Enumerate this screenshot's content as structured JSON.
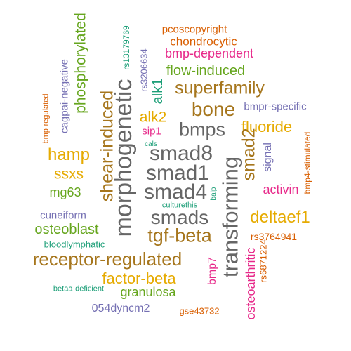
{
  "word_cloud": {
    "words": [
      {
        "text": "pcoscopyright",
        "color": "#d95f02"
      },
      {
        "text": "chondrocytic",
        "color": "#d95f02"
      },
      {
        "text": "bmp-dependent",
        "color": "#e7298a"
      },
      {
        "text": "rs13179769",
        "color": "#1b9e77"
      },
      {
        "text": "phosphorylated",
        "color": "#66a61e"
      },
      {
        "text": "cagpai-negative",
        "color": "#7570b3"
      },
      {
        "text": "rs3206634",
        "color": "#7570b3"
      },
      {
        "text": "flow-induced",
        "color": "#66a61e"
      },
      {
        "text": "alk1",
        "color": "#1b9e77"
      },
      {
        "text": "superfamily",
        "color": "#a6761d"
      },
      {
        "text": "bmp-regulated",
        "color": "#d95f02"
      },
      {
        "text": "morphogenetic",
        "color": "#666666"
      },
      {
        "text": "bone",
        "color": "#a6761d"
      },
      {
        "text": "bmpr-specific",
        "color": "#7570b3"
      },
      {
        "text": "alk2",
        "color": "#e6ab02"
      },
      {
        "text": "shear-induced",
        "color": "#a6761d"
      },
      {
        "text": "bmps",
        "color": "#666666"
      },
      {
        "text": "fluoride",
        "color": "#e6ab02"
      },
      {
        "text": "sip1",
        "color": "#e7298a"
      },
      {
        "text": "cals",
        "color": "#1b9e77"
      },
      {
        "text": "bmp4-stimulated",
        "color": "#d95f02"
      },
      {
        "text": "smad8",
        "color": "#666666"
      },
      {
        "text": "smad2",
        "color": "#a6761d"
      },
      {
        "text": "signal",
        "color": "#7570b3"
      },
      {
        "text": "hamp",
        "color": "#e6ab02"
      },
      {
        "text": "smad1",
        "color": "#666666"
      },
      {
        "text": "transforming",
        "color": "#666666"
      },
      {
        "text": "ssxs",
        "color": "#e6ab02"
      },
      {
        "text": "smad4",
        "color": "#666666"
      },
      {
        "text": "activin",
        "color": "#e7298a"
      },
      {
        "text": "mg63",
        "color": "#66a61e"
      },
      {
        "text": "culturethis",
        "color": "#1b9e77"
      },
      {
        "text": "balp",
        "color": "#1b9e77"
      },
      {
        "text": "cuneiform",
        "color": "#7570b3"
      },
      {
        "text": "smads",
        "color": "#666666"
      },
      {
        "text": "deltaef1",
        "color": "#e6ab02"
      },
      {
        "text": "osteoblast",
        "color": "#66a61e"
      },
      {
        "text": "tgf-beta",
        "color": "#a6761d"
      },
      {
        "text": "rs3764941",
        "color": "#d95f02"
      },
      {
        "text": "bloodlymphatic",
        "color": "#1b9e77"
      },
      {
        "text": "rs6871224",
        "color": "#d95f02"
      },
      {
        "text": "receptor-regulated",
        "color": "#a6761d"
      },
      {
        "text": "bmp7",
        "color": "#e7298a"
      },
      {
        "text": "osteoarthritic",
        "color": "#e7298a"
      },
      {
        "text": "factor-beta",
        "color": "#e6ab02"
      },
      {
        "text": "granulosa",
        "color": "#66a61e"
      },
      {
        "text": "betaa-deficient",
        "color": "#1b9e77"
      },
      {
        "text": "054dyncm2",
        "color": "#7570b3"
      },
      {
        "text": "gse43732",
        "color": "#d95f02"
      }
    ]
  }
}
